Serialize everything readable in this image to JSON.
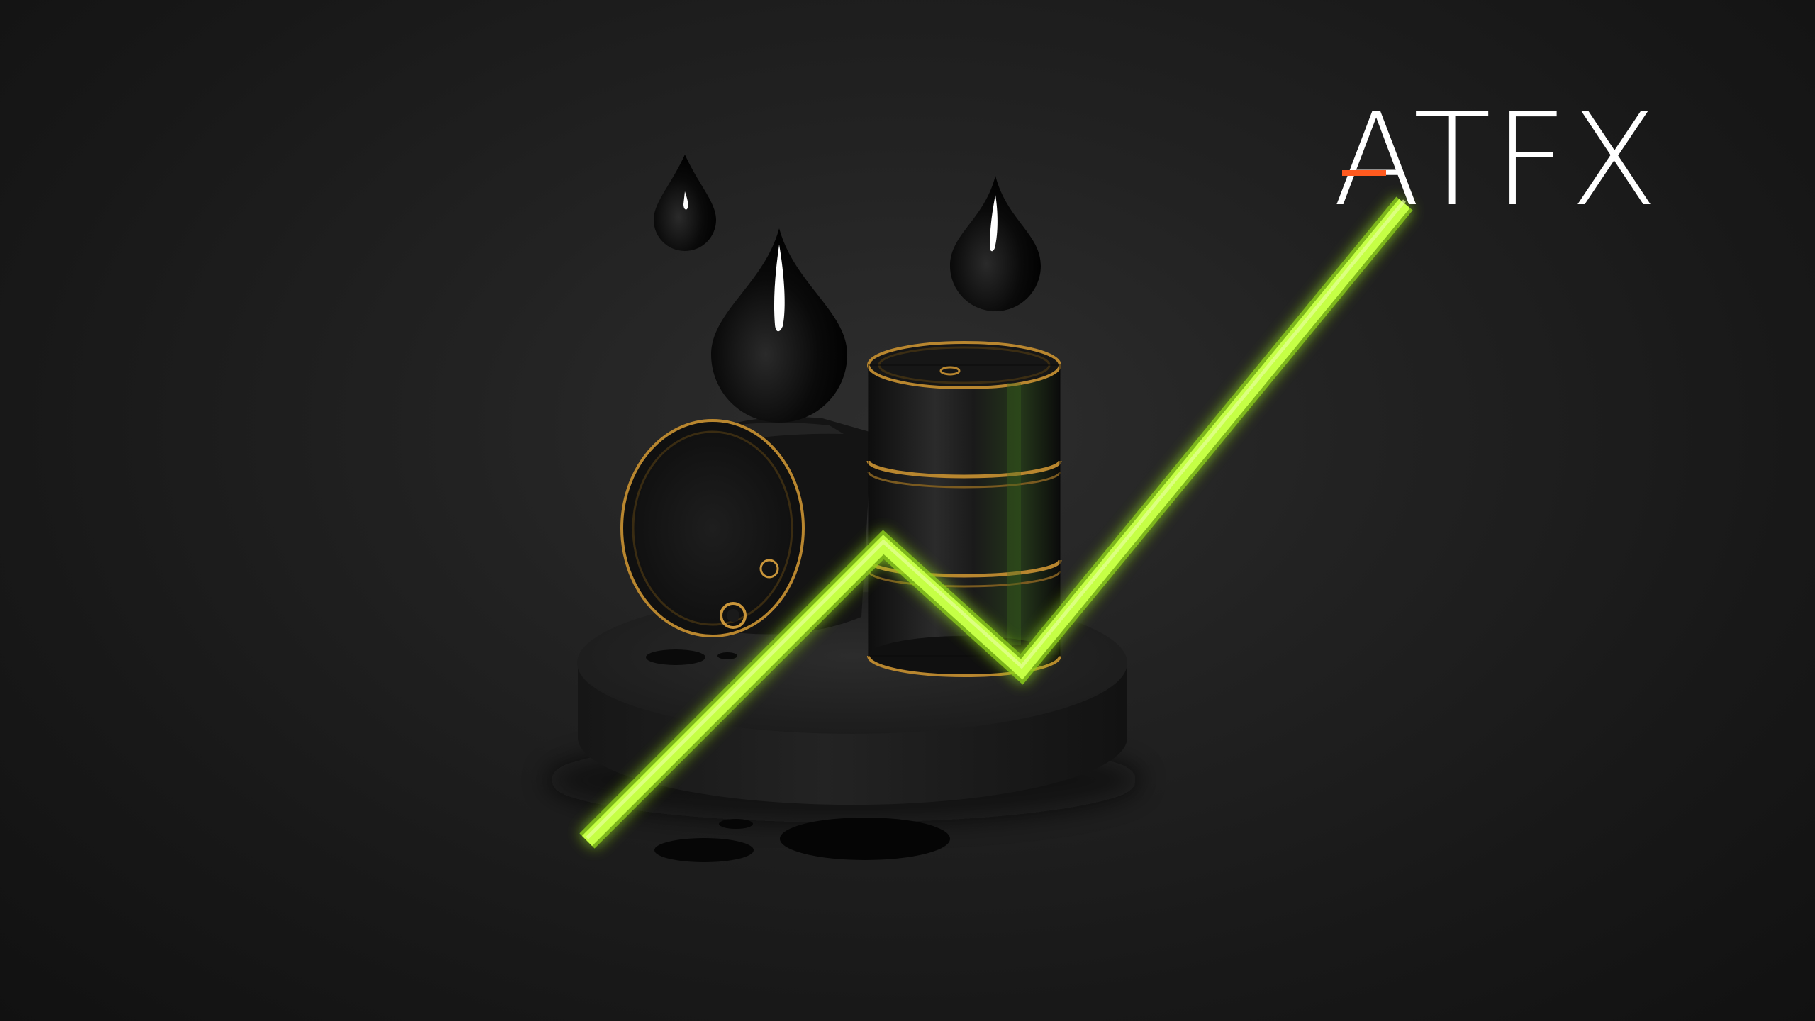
{
  "brand": {
    "logo_text": "ATFX",
    "logo_color": "#ffffff",
    "accent_color": "#ff5a1f"
  },
  "scene": {
    "background_color": "#1c1c1c",
    "trend_line_color": "#b6ff2e",
    "barrel_trim_color": "#b8862f"
  },
  "icons": [
    "oil-drop-icon",
    "oil-barrel-icon",
    "trend-up-line"
  ]
}
